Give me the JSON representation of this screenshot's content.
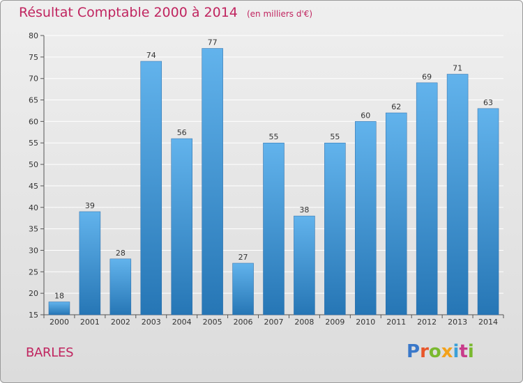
{
  "header": {
    "title": "Résultat Comptable 2000 à 2014",
    "unit": "(en milliers d'€)"
  },
  "footer": {
    "place": "BARLES",
    "logo": "Proxiti"
  },
  "colors": {
    "bar_light": "#62b3ec",
    "bar_dark": "#2676b5",
    "title": "#c0245f",
    "grid": "#ffffff"
  },
  "chart_data": {
    "type": "bar",
    "title": "Résultat Comptable 2000 à 2014",
    "subtitle": "(en milliers d'€)",
    "xlabel": "",
    "ylabel": "",
    "categories": [
      "2000",
      "2001",
      "2002",
      "2003",
      "2004",
      "2005",
      "2006",
      "2007",
      "2008",
      "2009",
      "2010",
      "2011",
      "2012",
      "2013",
      "2014"
    ],
    "values": [
      18,
      39,
      28,
      74,
      56,
      77,
      27,
      55,
      38,
      55,
      60,
      62,
      69,
      71,
      63
    ],
    "ylim": [
      15,
      80
    ],
    "yticks": [
      15,
      20,
      25,
      30,
      35,
      40,
      45,
      50,
      55,
      60,
      65,
      70,
      75,
      80
    ],
    "grid": true,
    "legend": "none"
  }
}
